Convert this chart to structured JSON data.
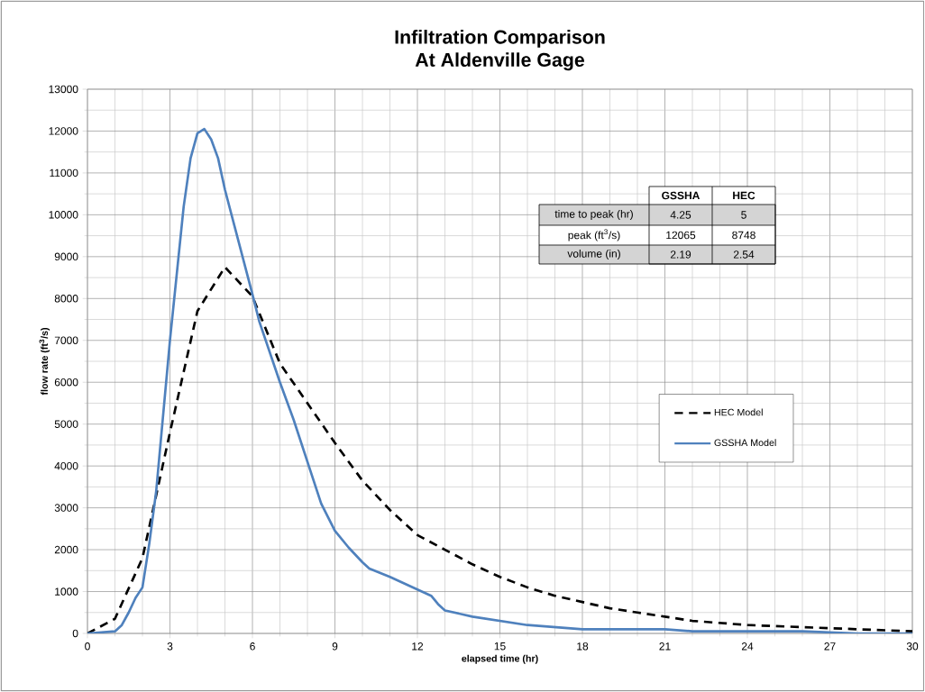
{
  "chart_data": {
    "type": "line",
    "title": "Infiltration Comparison\nAt Aldenville Gage",
    "xlabel": "elapsed time (hr)",
    "ylabel": "flow rate (ft$^{3}$/s)",
    "xlim": [
      0,
      30
    ],
    "ylim": [
      0,
      13000
    ],
    "xticks": [
      0,
      3,
      6,
      9,
      12,
      15,
      18,
      21,
      24,
      27,
      30
    ],
    "yticks": [
      0,
      1000,
      2000,
      3000,
      4000,
      5000,
      6000,
      7000,
      8000,
      9000,
      10000,
      11000,
      12000,
      13000
    ],
    "grid": true,
    "legend": "right",
    "marker": "none",
    "series": [
      {
        "name": "HEC Model",
        "color": "#000000",
        "line_style": "dashed",
        "x": [
          0,
          1,
          2,
          3,
          4,
          5,
          6,
          7,
          8,
          9,
          10,
          11,
          12,
          13,
          14,
          15,
          16,
          17,
          18,
          19,
          20,
          21,
          22,
          24,
          26,
          28,
          30
        ],
        "values": [
          0,
          350,
          1800,
          4800,
          7700,
          8750,
          8050,
          6450,
          5500,
          4550,
          3650,
          2950,
          2350,
          2000,
          1650,
          1350,
          1100,
          900,
          750,
          600,
          500,
          400,
          300,
          200,
          150,
          100,
          50
        ]
      },
      {
        "name": "GSSHA Model",
        "color": "#4f81bd",
        "line_style": "solid",
        "x": [
          0,
          1,
          1.25,
          1.5,
          1.75,
          2,
          2.25,
          2.5,
          3,
          3.5,
          3.75,
          4,
          4.25,
          4.5,
          4.75,
          5,
          6,
          6.25,
          7,
          7.5,
          8,
          8.5,
          9,
          9.5,
          10,
          10.25,
          11,
          12,
          12.5,
          12.75,
          13,
          14,
          15,
          16,
          17,
          18,
          19,
          20,
          21,
          22,
          24,
          26,
          28,
          30
        ],
        "values": [
          0,
          50,
          200,
          500,
          850,
          1100,
          2150,
          3400,
          7000,
          10200,
          11350,
          11950,
          12050,
          11800,
          11350,
          10600,
          8100,
          7450,
          6000,
          5100,
          4100,
          3100,
          2450,
          2050,
          1700,
          1550,
          1350,
          1050,
          900,
          700,
          550,
          400,
          300,
          200,
          150,
          100,
          100,
          100,
          100,
          50,
          50,
          50,
          0,
          0
        ]
      }
    ],
    "annotations": [
      "GSSHA",
      "HEC",
      "time to peak (hr)",
      "4.25",
      "5",
      "peak (ft$^{3}$/s)",
      "12065",
      "8748",
      "volume (in)",
      "2.19",
      "2.54"
    ]
  }
}
